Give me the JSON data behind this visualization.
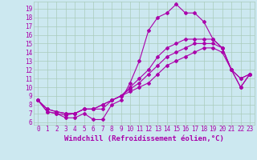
{
  "xlabel": "Windchill (Refroidissement éolien,°C)",
  "background_color": "#cce8f0",
  "grid_color": "#aaccbb",
  "line_color": "#aa00aa",
  "xlim": [
    -0.5,
    23.5
  ],
  "ylim": [
    5.7,
    19.8
  ],
  "xticks": [
    0,
    1,
    2,
    3,
    4,
    5,
    6,
    7,
    8,
    9,
    10,
    11,
    12,
    13,
    14,
    15,
    16,
    17,
    18,
    19,
    20,
    21,
    22,
    23
  ],
  "yticks": [
    6,
    7,
    8,
    9,
    10,
    11,
    12,
    13,
    14,
    15,
    16,
    17,
    18,
    19
  ],
  "lines": [
    {
      "x": [
        0,
        1,
        2,
        3,
        4,
        5,
        6,
        7,
        8,
        9,
        10,
        11,
        12,
        13,
        14,
        15,
        16,
        17,
        18,
        19,
        20,
        21,
        22,
        23
      ],
      "y": [
        8.5,
        7.2,
        7.0,
        6.5,
        6.5,
        7.0,
        6.3,
        6.3,
        8.0,
        8.5,
        10.5,
        13.0,
        16.5,
        18.0,
        18.5,
        19.5,
        18.5,
        18.5,
        17.5,
        15.5,
        14.5,
        12.0,
        10.0,
        11.5
      ]
    },
    {
      "x": [
        0,
        1,
        2,
        3,
        4,
        5,
        6,
        7,
        8,
        9,
        10,
        11,
        12,
        13,
        14,
        15,
        16,
        17,
        18,
        19,
        20,
        21,
        22,
        23
      ],
      "y": [
        8.5,
        7.2,
        7.0,
        6.8,
        7.0,
        7.5,
        7.5,
        7.5,
        8.5,
        9.0,
        10.0,
        11.0,
        12.0,
        13.5,
        14.5,
        15.0,
        15.5,
        15.5,
        15.5,
        15.5,
        14.5,
        12.0,
        10.0,
        11.5
      ]
    },
    {
      "x": [
        0,
        1,
        2,
        3,
        4,
        5,
        6,
        7,
        8,
        9,
        10,
        11,
        12,
        13,
        14,
        15,
        16,
        17,
        18,
        19,
        20,
        21,
        22,
        23
      ],
      "y": [
        8.5,
        7.5,
        7.2,
        7.0,
        7.0,
        7.5,
        7.5,
        8.0,
        8.5,
        9.0,
        9.8,
        10.5,
        11.5,
        12.5,
        13.5,
        14.0,
        14.5,
        15.0,
        15.0,
        15.0,
        14.5,
        12.0,
        11.0,
        11.5
      ]
    },
    {
      "x": [
        0,
        1,
        2,
        3,
        4,
        5,
        6,
        7,
        8,
        9,
        10,
        11,
        12,
        13,
        14,
        15,
        16,
        17,
        18,
        19,
        20,
        21,
        22,
        23
      ],
      "y": [
        8.5,
        7.5,
        7.2,
        7.0,
        7.0,
        7.5,
        7.5,
        8.0,
        8.5,
        9.0,
        9.5,
        10.0,
        10.5,
        11.5,
        12.5,
        13.0,
        13.5,
        14.0,
        14.5,
        14.5,
        14.0,
        12.0,
        11.0,
        11.5
      ]
    }
  ],
  "marker": "D",
  "markersize": 2.0,
  "linewidth": 0.8,
  "tick_fontsize": 5.5,
  "xlabel_fontsize": 6.5
}
